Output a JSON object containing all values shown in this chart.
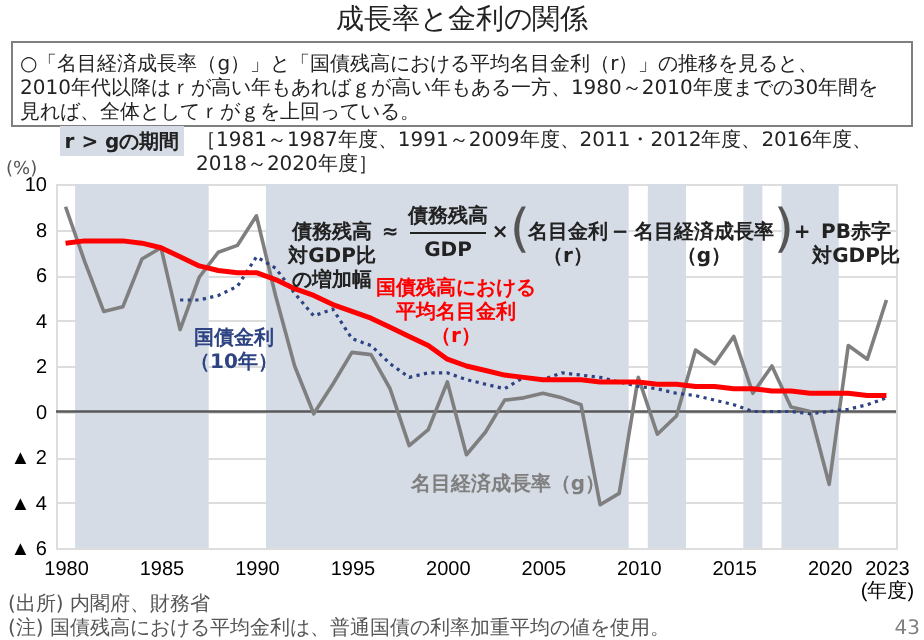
{
  "chart_data": {
    "type": "line",
    "title": "成長率と金利の関係",
    "ylabel": "(%)",
    "x": [
      1980,
      1981,
      1982,
      1983,
      1984,
      1985,
      1986,
      1987,
      1988,
      1989,
      1990,
      1991,
      1992,
      1993,
      1994,
      1995,
      1996,
      1997,
      1998,
      1999,
      2000,
      2001,
      2002,
      2003,
      2004,
      2005,
      2006,
      2007,
      2008,
      2009,
      2010,
      2011,
      2012,
      2013,
      2014,
      2015,
      2016,
      2017,
      2018,
      2019,
      2020,
      2021,
      2022,
      2023
    ],
    "series": [
      {
        "name": "名目経済成長率（g）",
        "color": "#7f7f7f",
        "line_style": "solid",
        "values": [
          9.0,
          6.6,
          4.4,
          4.6,
          6.7,
          7.2,
          3.6,
          5.9,
          7.0,
          7.3,
          8.6,
          5.1,
          2.0,
          -0.1,
          1.2,
          2.6,
          2.5,
          1.0,
          -1.5,
          -0.8,
          1.3,
          -1.9,
          -0.9,
          0.5,
          0.6,
          0.8,
          0.6,
          0.3,
          -4.1,
          -3.6,
          1.5,
          -1.0,
          -0.2,
          2.7,
          2.1,
          3.3,
          0.8,
          2.0,
          0.2,
          0.0,
          -3.2,
          2.9,
          2.3,
          4.9
        ]
      },
      {
        "name": "国債金利（10年）",
        "color": "#2e4482",
        "line_style": "dotted",
        "x": [
          1986,
          1987,
          1988,
          1989,
          1990,
          1991,
          1992,
          1993,
          1994,
          1995,
          1996,
          1997,
          1998,
          1999,
          2000,
          2001,
          2002,
          2003,
          2004,
          2005,
          2006,
          2007,
          2008,
          2009,
          2010,
          2011,
          2012,
          2013,
          2014,
          2015,
          2016,
          2017,
          2018,
          2019,
          2020,
          2021,
          2022,
          2023
        ],
        "values": [
          4.9,
          4.9,
          5.1,
          5.5,
          6.8,
          6.3,
          5.2,
          4.2,
          4.5,
          3.2,
          2.9,
          2.1,
          1.5,
          1.7,
          1.7,
          1.4,
          1.2,
          1.0,
          1.5,
          1.4,
          1.7,
          1.6,
          1.5,
          1.3,
          1.1,
          1.0,
          0.8,
          0.7,
          0.5,
          0.3,
          0.0,
          0.0,
          0.0,
          -0.1,
          0.0,
          0.1,
          0.3,
          0.6
        ]
      },
      {
        "name": "国債残高における平均名目金利（r）",
        "color": "#ff0000",
        "line_style": "solid",
        "values": [
          7.4,
          7.5,
          7.5,
          7.5,
          7.4,
          7.2,
          6.8,
          6.4,
          6.2,
          6.1,
          6.1,
          5.8,
          5.4,
          5.1,
          4.7,
          4.4,
          4.1,
          3.7,
          3.3,
          2.9,
          2.3,
          2.0,
          1.8,
          1.6,
          1.5,
          1.4,
          1.4,
          1.4,
          1.3,
          1.3,
          1.3,
          1.2,
          1.2,
          1.1,
          1.1,
          1.0,
          1.0,
          0.9,
          0.9,
          0.8,
          0.8,
          0.8,
          0.7,
          0.7
        ]
      }
    ],
    "xlim": [
      1979.5,
      2023.5
    ],
    "xticks": [
      1980,
      1985,
      1990,
      1995,
      2000,
      2005,
      2010,
      2015,
      2020,
      {
        "value": 2023,
        "label": "2023\n(年度)"
      }
    ],
    "ylim": [
      -6,
      10
    ],
    "yticks": [
      10,
      8,
      6,
      4,
      2,
      0,
      {
        "value": -2,
        "label": "▲ 2"
      },
      {
        "value": -4,
        "label": "▲ 4"
      },
      {
        "value": -6,
        "label": "▲ 6"
      }
    ],
    "grid": "y",
    "ref_lines": [
      {
        "axis": "y",
        "value": 0,
        "color": "#595959"
      }
    ],
    "bands": [
      {
        "axis": "x",
        "from": 1980.5,
        "to": 1987.5,
        "color": "#d6dce6"
      },
      {
        "axis": "x",
        "from": 1990.5,
        "to": 2009.5,
        "color": "#d6dce6"
      },
      {
        "axis": "x",
        "from": 2010.5,
        "to": 2012.5,
        "color": "#d6dce6"
      },
      {
        "axis": "x",
        "from": 2015.5,
        "to": 2016.5,
        "color": "#d6dce6"
      },
      {
        "axis": "x",
        "from": 2017.5,
        "to": 2020.5,
        "color": "#d6dce6"
      }
    ],
    "annotations": [
      "○「名目経済成長率（g）」と「国債残高における平均名目金利（r）」の推移を見ると、2010年代以降はｒが高い年もあればｇが高い年もある一方、1980～2010年度までの30年間を見れば、全体としてｒがｇを上回っている。",
      "r > gの期間",
      "［1981～1987年度、1991～2009年度、2011・2012年度、2016年度、2018～2020年度］",
      "債務残高対GDP比の増加幅",
      "≈",
      "債務残高",
      "GDP",
      "×",
      "(",
      "名目金利（r）",
      "−",
      "名目経済成長率（g）",
      ")",
      "+",
      "PB赤字対GDP比",
      "(出所) 内閣府、財務省",
      "(注) 国債残高における平均金利は、普通国債の利率加重平均の値を使用。",
      "43"
    ]
  }
}
